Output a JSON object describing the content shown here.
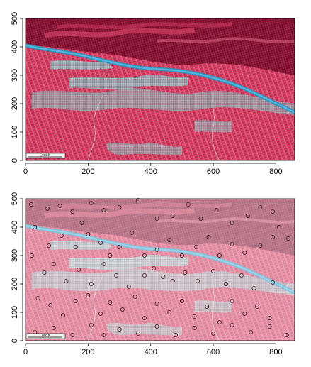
{
  "chart_data": [
    {
      "type": "raster",
      "xlim": [
        0,
        860
      ],
      "ylim": [
        0,
        500
      ],
      "x_ticks": [
        0,
        200,
        400,
        600,
        800
      ],
      "y_ticks": [
        0,
        100,
        200,
        300,
        400,
        500
      ],
      "overlay": "none",
      "scalebar_text": "1,000 ft",
      "colors": {
        "vegetation": "#d8325a",
        "dark_forest": "#7a1030",
        "urban": "#8aa0a8",
        "river": "#3a9ac0",
        "frame": "#000000"
      }
    },
    {
      "type": "scatter",
      "xlim": [
        0,
        860
      ],
      "ylim": [
        0,
        500
      ],
      "x_ticks": [
        0,
        200,
        400,
        600,
        800
      ],
      "y_ticks": [
        0,
        100,
        200,
        300,
        400,
        500
      ],
      "background": "same satellite raster, lightened",
      "scalebar_text": "1,000 ft",
      "marker": "open-circle",
      "marker_color": "#4a2a30",
      "points": [
        [
          18,
          480
        ],
        [
          70,
          465
        ],
        [
          110,
          475
        ],
        [
          150,
          455
        ],
        [
          180,
          415
        ],
        [
          210,
          485
        ],
        [
          250,
          460
        ],
        [
          300,
          470
        ],
        [
          360,
          495
        ],
        [
          420,
          430
        ],
        [
          470,
          440
        ],
        [
          520,
          480
        ],
        [
          560,
          430
        ],
        [
          610,
          460
        ],
        [
          660,
          415
        ],
        [
          710,
          440
        ],
        [
          750,
          470
        ],
        [
          790,
          455
        ],
        [
          810,
          400
        ],
        [
          840,
          360
        ],
        [
          30,
          400
        ],
        [
          75,
          335
        ],
        [
          115,
          370
        ],
        [
          160,
          330
        ],
        [
          200,
          375
        ],
        [
          240,
          345
        ],
        [
          270,
          300
        ],
        [
          300,
          330
        ],
        [
          340,
          380
        ],
        [
          380,
          300
        ],
        [
          420,
          320
        ],
        [
          460,
          355
        ],
        [
          500,
          300
        ],
        [
          545,
          330
        ],
        [
          585,
          365
        ],
        [
          620,
          300
        ],
        [
          660,
          340
        ],
        [
          700,
          310
        ],
        [
          750,
          335
        ],
        [
          790,
          365
        ],
        [
          20,
          300
        ],
        [
          60,
          240
        ],
        [
          90,
          270
        ],
        [
          130,
          210
        ],
        [
          170,
          250
        ],
        [
          210,
          200
        ],
        [
          250,
          270
        ],
        [
          290,
          230
        ],
        [
          330,
          190
        ],
        [
          380,
          230
        ],
        [
          410,
          255
        ],
        [
          440,
          225
        ],
        [
          470,
          210
        ],
        [
          510,
          240
        ],
        [
          550,
          210
        ],
        [
          600,
          245
        ],
        [
          640,
          200
        ],
        [
          690,
          230
        ],
        [
          730,
          185
        ],
        [
          790,
          205
        ],
        [
          40,
          150
        ],
        [
          80,
          125
        ],
        [
          120,
          90
        ],
        [
          160,
          140
        ],
        [
          200,
          160
        ],
        [
          240,
          95
        ],
        [
          270,
          135
        ],
        [
          310,
          110
        ],
        [
          350,
          155
        ],
        [
          380,
          80
        ],
        [
          420,
          130
        ],
        [
          460,
          100
        ],
        [
          500,
          140
        ],
        [
          540,
          85
        ],
        [
          580,
          120
        ],
        [
          620,
          65
        ],
        [
          660,
          140
        ],
        [
          700,
          95
        ],
        [
          740,
          120
        ],
        [
          780,
          80
        ],
        [
          30,
          30
        ],
        [
          90,
          45
        ],
        [
          150,
          20
        ],
        [
          210,
          55
        ],
        [
          250,
          20
        ],
        [
          300,
          40
        ],
        [
          360,
          25
        ],
        [
          420,
          50
        ],
        [
          480,
          20
        ],
        [
          540,
          45
        ],
        [
          600,
          25
        ],
        [
          660,
          55
        ],
        [
          720,
          30
        ],
        [
          780,
          50
        ],
        [
          835,
          20
        ]
      ]
    }
  ]
}
